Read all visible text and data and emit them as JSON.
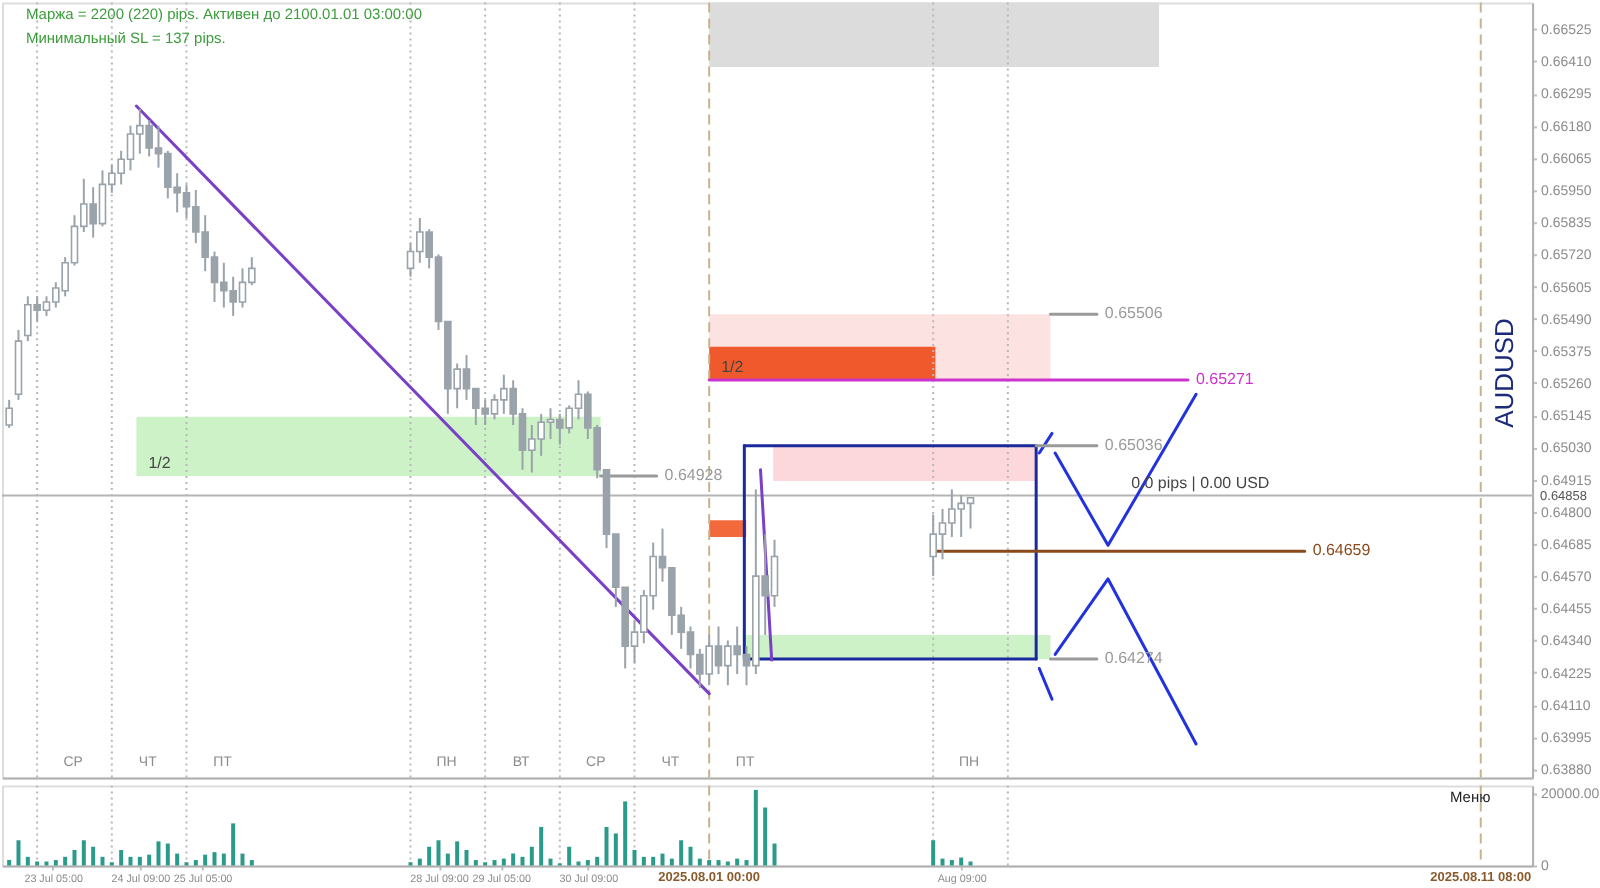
{
  "chart_data": [
    {
      "type": "candlestick",
      "ylabel": "AUDUSD",
      "color": "#9aa2aa",
      "x": [
        "2025-07-22T15:00",
        "2025-07-22T18:00",
        "2025-07-22T21:00",
        "2025-07-23T00:00",
        "2025-07-23T03:00",
        "2025-07-23T06:00",
        "2025-07-23T09:00",
        "2025-07-23T12:00",
        "2025-07-23T15:00",
        "2025-07-23T18:00",
        "2025-07-23T21:00",
        "2025-07-24T00:00",
        "2025-07-24T03:00",
        "2025-07-24T06:00",
        "2025-07-24T09:00",
        "2025-07-24T12:00",
        "2025-07-24T15:00",
        "2025-07-24T18:00",
        "2025-07-24T21:00",
        "2025-07-25T00:00",
        "2025-07-25T03:00",
        "2025-07-25T06:00",
        "2025-07-25T09:00",
        "2025-07-25T12:00",
        "2025-07-25T15:00",
        "2025-07-25T18:00",
        "2025-07-25T21:00",
        "2025-07-28T00:00",
        "2025-07-28T03:00",
        "2025-07-28T06:00",
        "2025-07-28T09:00",
        "2025-07-28T12:00",
        "2025-07-28T15:00",
        "2025-07-28T18:00",
        "2025-07-28T21:00",
        "2025-07-29T00:00",
        "2025-07-29T03:00",
        "2025-07-29T06:00",
        "2025-07-29T09:00",
        "2025-07-29T12:00",
        "2025-07-29T15:00",
        "2025-07-29T18:00",
        "2025-07-29T21:00",
        "2025-07-30T00:00",
        "2025-07-30T03:00",
        "2025-07-30T06:00",
        "2025-07-30T09:00",
        "2025-07-30T12:00",
        "2025-07-30T15:00",
        "2025-07-30T18:00",
        "2025-07-30T21:00",
        "2025-07-31T00:00",
        "2025-07-31T03:00",
        "2025-07-31T06:00",
        "2025-07-31T09:00",
        "2025-07-31T12:00",
        "2025-07-31T15:00",
        "2025-07-31T18:00",
        "2025-07-31T21:00",
        "2025-08-01T00:00",
        "2025-08-01T03:00",
        "2025-08-01T06:00",
        "2025-08-01T09:00",
        "2025-08-01T12:00",
        "2025-08-01T15:00",
        "2025-08-01T18:00",
        "2025-08-01T21:00",
        "2025-08-04T00:00",
        "2025-08-04T03:00",
        "2025-08-04T06:00",
        "2025-08-04T09:00",
        "2025-08-04T12:00"
      ],
      "ohlc": [
        [
          0.6511,
          0.652,
          0.651,
          0.6517
        ],
        [
          0.6522,
          0.6545,
          0.652,
          0.6541
        ],
        [
          0.6543,
          0.6557,
          0.6541,
          0.6554
        ],
        [
          0.6554,
          0.6557,
          0.6548,
          0.6552
        ],
        [
          0.6552,
          0.6557,
          0.655,
          0.6555
        ],
        [
          0.6555,
          0.6562,
          0.6553,
          0.656
        ],
        [
          0.6559,
          0.6571,
          0.6557,
          0.6569
        ],
        [
          0.6569,
          0.6586,
          0.6568,
          0.6582
        ],
        [
          0.6582,
          0.6599,
          0.658,
          0.659
        ],
        [
          0.659,
          0.6596,
          0.6578,
          0.6583
        ],
        [
          0.6583,
          0.6602,
          0.6582,
          0.6597
        ],
        [
          0.6597,
          0.6604,
          0.6594,
          0.6601
        ],
        [
          0.6601,
          0.6609,
          0.6597,
          0.6606
        ],
        [
          0.6606,
          0.6618,
          0.6602,
          0.6615
        ],
        [
          0.6615,
          0.6624,
          0.6608,
          0.6618
        ],
        [
          0.6618,
          0.662,
          0.6607,
          0.661
        ],
        [
          0.661,
          0.6618,
          0.6603,
          0.6608
        ],
        [
          0.6608,
          0.6609,
          0.6592,
          0.6596
        ],
        [
          0.6596,
          0.6601,
          0.6587,
          0.6594
        ],
        [
          0.6594,
          0.6597,
          0.6585,
          0.6589
        ],
        [
          0.6589,
          0.6595,
          0.6576,
          0.658
        ],
        [
          0.658,
          0.6586,
          0.6566,
          0.6571
        ],
        [
          0.6571,
          0.6573,
          0.6555,
          0.6562
        ],
        [
          0.6562,
          0.6569,
          0.6553,
          0.6559
        ],
        [
          0.6559,
          0.6564,
          0.655,
          0.6555
        ],
        [
          0.6555,
          0.6567,
          0.6553,
          0.6562
        ],
        [
          0.6562,
          0.6571,
          0.6561,
          0.6567
        ],
        [
          0.6567,
          0.6576,
          0.6564,
          0.6573
        ],
        [
          0.6573,
          0.6585,
          0.6569,
          0.658
        ],
        [
          0.658,
          0.6581,
          0.6567,
          0.6571
        ],
        [
          0.6571,
          0.6572,
          0.6545,
          0.6548
        ],
        [
          0.6548,
          0.6548,
          0.6515,
          0.6524
        ],
        [
          0.6524,
          0.6533,
          0.6517,
          0.6531
        ],
        [
          0.6531,
          0.6536,
          0.652,
          0.6524
        ],
        [
          0.6524,
          0.6524,
          0.6511,
          0.6517
        ],
        [
          0.6517,
          0.652,
          0.6511,
          0.6515
        ],
        [
          0.6515,
          0.6522,
          0.6513,
          0.652
        ],
        [
          0.652,
          0.6529,
          0.6515,
          0.6524
        ],
        [
          0.6524,
          0.6527,
          0.6511,
          0.6515
        ],
        [
          0.6515,
          0.6517,
          0.6495,
          0.6502
        ],
        [
          0.6502,
          0.6511,
          0.6494,
          0.6506
        ],
        [
          0.6506,
          0.6515,
          0.65,
          0.6512
        ],
        [
          0.6512,
          0.6517,
          0.6506,
          0.6513
        ],
        [
          0.6513,
          0.6515,
          0.6504,
          0.651
        ],
        [
          0.651,
          0.6518,
          0.6508,
          0.6517
        ],
        [
          0.6517,
          0.6527,
          0.6513,
          0.6522
        ],
        [
          0.6522,
          0.6523,
          0.6506,
          0.651
        ],
        [
          0.651,
          0.6511,
          0.6492,
          0.6495
        ],
        [
          0.6495,
          0.6495,
          0.6467,
          0.6472
        ],
        [
          0.6472,
          0.6472,
          0.6446,
          0.6453
        ],
        [
          0.6453,
          0.6453,
          0.6424,
          0.6432
        ],
        [
          0.6432,
          0.6441,
          0.6426,
          0.6437
        ],
        [
          0.6437,
          0.6452,
          0.6433,
          0.645
        ],
        [
          0.645,
          0.6469,
          0.6445,
          0.6464
        ],
        [
          0.6464,
          0.6474,
          0.6455,
          0.646
        ],
        [
          0.646,
          0.646,
          0.6436,
          0.6443
        ],
        [
          0.6443,
          0.6446,
          0.6431,
          0.6437
        ],
        [
          0.6437,
          0.6439,
          0.6424,
          0.6429
        ],
        [
          0.6429,
          0.6431,
          0.6417,
          0.6422
        ],
        [
          0.6422,
          0.6436,
          0.6418,
          0.6432
        ],
        [
          0.6432,
          0.6439,
          0.6422,
          0.6425
        ],
        [
          0.6425,
          0.6434,
          0.6418,
          0.6432
        ],
        [
          0.6432,
          0.6439,
          0.6422,
          0.6429
        ],
        [
          0.6429,
          0.6432,
          0.6418,
          0.6425
        ],
        [
          0.6425,
          0.6488,
          0.6422,
          0.6457
        ],
        [
          0.6457,
          0.6472,
          0.6436,
          0.645
        ],
        [
          0.645,
          0.647,
          0.6446,
          0.6464
        ],
        [
          0.6464,
          0.6479,
          0.6457,
          0.6472
        ],
        [
          0.6472,
          0.6481,
          0.6463,
          0.6476
        ],
        [
          0.6476,
          0.6488,
          0.6471,
          0.6481
        ],
        [
          0.6481,
          0.6486,
          0.6471,
          0.6483
        ],
        [
          0.6483,
          0.6485,
          0.6474,
          0.6485
        ]
      ],
      "series": [
        {
          "type": "line",
          "color": "#dcdcdc",
          "x": [
            "2025-08-01T00:00",
            "2025-08-07T00:36"
          ],
          "values": [
            null,
            null
          ],
          "lower": [
            0.6639,
            0.6639
          ],
          "upper": [
            0.6662,
            0.6662
          ]
        },
        {
          "type": "line",
          "color": "#fde2e2",
          "x": [
            "2025-08-01T00:00",
            "2025-08-05T13:42"
          ],
          "values": [
            null,
            null
          ],
          "lower": [
            0.65271,
            0.65271
          ],
          "upper": [
            0.65506,
            0.65506
          ]
        },
        {
          "type": "line",
          "color": "#f0592b",
          "x": [
            "2025-08-01T00:00",
            "2025-08-04T00:42"
          ],
          "values": [
            null,
            null
          ],
          "lower": [
            0.65271,
            0.65271
          ],
          "upper": [
            0.6539,
            0.6539
          ]
        },
        {
          "type": "line",
          "color": "#cdf2c8",
          "x": [
            "2025-07-24T07:54",
            "2025-07-30T13:06"
          ],
          "values": [
            null,
            null
          ],
          "lower": [
            0.64928,
            0.64928
          ],
          "upper": [
            0.6514,
            0.6514
          ]
        },
        {
          "type": "line",
          "color": "#fcd8dc",
          "x": [
            "2025-08-01T20:36",
            "2025-08-05T09:06"
          ],
          "values": [
            null,
            null
          ],
          "lower": [
            0.6491,
            0.6491
          ],
          "upper": [
            0.65036,
            0.65036
          ]
        },
        {
          "type": "line",
          "color": "#f26a3c",
          "x": [
            "2025-08-01T00:00",
            "2025-08-01T11:54"
          ],
          "values": [
            null,
            null
          ],
          "lower": [
            0.6471,
            0.6471
          ],
          "upper": [
            0.6477,
            0.6477
          ]
        },
        {
          "type": "line",
          "color": "#cdf2c8",
          "x": [
            "2025-08-01T11:18",
            "2025-08-05T13:42"
          ],
          "values": [
            null,
            null
          ],
          "lower": [
            0.64274,
            0.64274
          ],
          "upper": [
            0.6436,
            0.6436
          ]
        },
        {
          "type": "line",
          "color": "#1a2a9c",
          "x": [
            "2025-08-01T11:18",
            "2025-08-05T09:06",
            "2025-08-05T09:06"
          ],
          "values": [
            0.65036,
            0.65036,
            0.64274
          ]
        },
        {
          "type": "line",
          "color": "#1a2a9c",
          "x": [
            "2025-08-01T11:18",
            "2025-08-01T11:18",
            "2025-08-05T09:06"
          ],
          "values": [
            0.65036,
            0.64274,
            0.64274
          ]
        },
        {
          "type": "line",
          "color": "#2233dd",
          "x": [
            "2025-08-05T10:06",
            "2025-08-05T14:12"
          ],
          "values": [
            0.6501,
            0.6508
          ]
        },
        {
          "type": "line",
          "color": "#2233dd",
          "x": [
            "2025-08-05T15:12",
            "2025-08-06T08:12",
            "2025-08-07T12:30"
          ],
          "values": [
            0.6501,
            0.6468,
            0.6522
          ]
        },
        {
          "type": "line",
          "color": "#2233dd",
          "x": [
            "2025-08-05T10:06",
            "2025-08-05T14:12"
          ],
          "values": [
            0.6424,
            0.6413
          ]
        },
        {
          "type": "line",
          "color": "#2233dd",
          "x": [
            "2025-08-05T15:12",
            "2025-08-06T08:12",
            "2025-08-07T12:30"
          ],
          "values": [
            0.6429,
            0.6456,
            0.6397
          ]
        },
        {
          "type": "line",
          "color": "#7a40c8",
          "x": [
            "2025-07-24T07:54",
            "2025-08-01T00:00"
          ],
          "values": [
            0.6625,
            0.6415
          ]
        },
        {
          "type": "line",
          "color": "#7a40c8",
          "x": [
            "2025-08-01T16:30",
            "2025-08-01T20:06"
          ],
          "values": [
            0.6495,
            0.6427
          ]
        },
        {
          "type": "line",
          "name": "0.65271",
          "color": "#cc33cc",
          "x": [
            "2025-08-01T00:00",
            "2025-08-07T09:54"
          ],
          "values": [
            0.65271,
            0.65271
          ]
        },
        {
          "type": "line",
          "name": "0.64659",
          "color": "#8b4a1c",
          "x": [
            "2025-08-04T00:42",
            "2025-08-08T23:24"
          ],
          "values": [
            0.64659,
            0.64659
          ]
        },
        {
          "type": "line",
          "name": "0.65506",
          "color": "#9a9a9a",
          "x": [
            "2025-08-05T13:42",
            "2025-08-06T04:36"
          ],
          "values": [
            0.65506,
            0.65506
          ]
        },
        {
          "type": "line",
          "name": "0.65036",
          "color": "#9a9a9a",
          "x": [
            "2025-08-05T09:06",
            "2025-08-06T04:36"
          ],
          "values": [
            0.65036,
            0.65036
          ]
        },
        {
          "type": "line",
          "name": "0.64928",
          "color": "#9a9a9a",
          "x": [
            "2025-07-30T13:06",
            "2025-07-31T07:06"
          ],
          "values": [
            0.64928,
            0.64928
          ]
        },
        {
          "type": "line",
          "name": "0.64274",
          "color": "#9a9a9a",
          "x": [
            "2025-08-05T13:42",
            "2025-08-06T04:36"
          ],
          "values": [
            0.64274,
            0.64274
          ]
        }
      ],
      "ref_lines": [
        {
          "axis": "y",
          "value": 0.64858,
          "label": "0.64858",
          "color": "#b4b4b4",
          "line_style": "solid"
        },
        {
          "axis": "x",
          "value": "2025-07-23T00:00",
          "label": "СР",
          "color": "#b8b8b8",
          "line_style": "dotted"
        },
        {
          "axis": "x",
          "value": "2025-07-24T00:00",
          "label": "ЧТ",
          "color": "#b8b8b8",
          "line_style": "dotted"
        },
        {
          "axis": "x",
          "value": "2025-07-25T00:00",
          "label": "ПТ",
          "color": "#b8b8b8",
          "line_style": "dotted"
        },
        {
          "axis": "x",
          "value": "2025-07-28T00:00",
          "label": "ПН",
          "color": "#b8b8b8",
          "line_style": "dotted"
        },
        {
          "axis": "x",
          "value": "2025-07-29T00:00",
          "label": "ВТ",
          "color": "#b8b8b8",
          "line_style": "dotted"
        },
        {
          "axis": "x",
          "value": "2025-07-30T00:00",
          "label": "СР",
          "color": "#b8b8b8",
          "line_style": "dotted"
        },
        {
          "axis": "x",
          "value": "2025-07-31T00:00",
          "label": "ЧТ",
          "color": "#b8b8b8",
          "line_style": "dotted"
        },
        {
          "axis": "x",
          "value": "2025-08-01T00:00",
          "label": "ПТ",
          "color": "#c9b28f",
          "line_style": "dashed"
        },
        {
          "axis": "x",
          "value": "2025-08-04T00:00",
          "label": "ПН",
          "color": "#b8b8b8",
          "line_style": "dotted"
        },
        {
          "axis": "x",
          "value": "2025-08-05T00:00",
          "color": "#b8b8b8",
          "line_style": "dotted"
        },
        {
          "axis": "x",
          "value": "2025-08-11T08:00",
          "color": "#c9b28f",
          "line_style": "dashed"
        }
      ],
      "annotations": [
        "Маржа = 2200 (220) pips. Активен до 2100.01.01 03:00:00",
        "Минимальный SL = 137 pips.",
        {
          "text": "1/2",
          "x": "2025-07-24T07:54",
          "y": 0.64928
        },
        {
          "text": "1/2",
          "x": "2025-08-01T00:00",
          "y": 0.65271
        },
        {
          "text": "0.0 pips | 0.00 USD",
          "x": "2025-08-06T11:48",
          "y": 0.64858
        }
      ],
      "xlim": [
        "2025-07-22T12:42",
        "2025-08-12T00:30"
      ],
      "ylim": [
        0.6385,
        0.6662
      ],
      "tick_labels": "y",
      "yticks": [
        0.66525,
        {
          "value": 0.6641,
          "label": "0.66410"
        },
        0.66295,
        {
          "value": 0.6618,
          "label": "0.66180"
        },
        0.66065,
        {
          "value": 0.6595,
          "label": "0.65950"
        },
        0.65835,
        {
          "value": 0.6572,
          "label": "0.65720"
        },
        0.65605,
        {
          "value": 0.6549,
          "label": "0.65490"
        },
        0.65375,
        {
          "value": 0.6526,
          "label": "0.65260"
        },
        0.65145,
        {
          "value": 0.6503,
          "label": "0.65030"
        },
        0.64915,
        {
          "value": 0.648,
          "label": "0.64800"
        },
        0.64685,
        {
          "value": 0.6457,
          "label": "0.64570"
        },
        0.64455,
        {
          "value": 0.6434,
          "label": "0.64340"
        },
        0.64225,
        {
          "value": 0.6411,
          "label": "0.64110"
        },
        0.63995,
        {
          "value": 0.6388,
          "label": "0.63880"
        }
      ]
    },
    {
      "type": "bar",
      "color": "#2a9a8a",
      "x": [
        "2025-07-22T15:00",
        "2025-07-22T18:00",
        "2025-07-22T21:00",
        "2025-07-23T00:00",
        "2025-07-23T03:00",
        "2025-07-23T06:00",
        "2025-07-23T09:00",
        "2025-07-23T12:00",
        "2025-07-23T15:00",
        "2025-07-23T18:00",
        "2025-07-23T21:00",
        "2025-07-24T00:00",
        "2025-07-24T03:00",
        "2025-07-24T06:00",
        "2025-07-24T09:00",
        "2025-07-24T12:00",
        "2025-07-24T15:00",
        "2025-07-24T18:00",
        "2025-07-24T21:00",
        "2025-07-25T00:00",
        "2025-07-25T03:00",
        "2025-07-25T06:00",
        "2025-07-25T09:00",
        "2025-07-25T12:00",
        "2025-07-25T15:00",
        "2025-07-25T18:00",
        "2025-07-25T21:00",
        "2025-07-28T00:00",
        "2025-07-28T03:00",
        "2025-07-28T06:00",
        "2025-07-28T09:00",
        "2025-07-28T12:00",
        "2025-07-28T15:00",
        "2025-07-28T18:00",
        "2025-07-28T21:00",
        "2025-07-29T00:00",
        "2025-07-29T03:00",
        "2025-07-29T06:00",
        "2025-07-29T09:00",
        "2025-07-29T12:00",
        "2025-07-29T15:00",
        "2025-07-29T18:00",
        "2025-07-29T21:00",
        "2025-07-30T00:00",
        "2025-07-30T03:00",
        "2025-07-30T06:00",
        "2025-07-30T09:00",
        "2025-07-30T12:00",
        "2025-07-30T15:00",
        "2025-07-30T18:00",
        "2025-07-30T21:00",
        "2025-07-31T00:00",
        "2025-07-31T03:00",
        "2025-07-31T06:00",
        "2025-07-31T09:00",
        "2025-07-31T12:00",
        "2025-07-31T15:00",
        "2025-07-31T18:00",
        "2025-07-31T21:00",
        "2025-08-01T00:00",
        "2025-08-01T03:00",
        "2025-08-01T06:00",
        "2025-08-01T09:00",
        "2025-08-01T12:00",
        "2025-08-01T15:00",
        "2025-08-01T18:00",
        "2025-08-01T21:00",
        "2025-08-04T00:00",
        "2025-08-04T03:00",
        "2025-08-04T06:00",
        "2025-08-04T09:00",
        "2025-08-04T12:00"
      ],
      "values": [
        1500,
        7000,
        2400,
        1100,
        1100,
        1500,
        2400,
        4300,
        7000,
        5200,
        2400,
        900,
        4300,
        2400,
        2400,
        3000,
        6700,
        6100,
        3300,
        900,
        1500,
        3000,
        3700,
        3300,
        11700,
        3300,
        1500,
        900,
        1900,
        5200,
        7000,
        3300,
        6700,
        4300,
        1500,
        900,
        1500,
        1900,
        3300,
        2400,
        5200,
        10700,
        1900,
        600,
        5200,
        1100,
        1500,
        2400,
        10700,
        8900,
        17800,
        4300,
        2400,
        2400,
        3300,
        1900,
        7000,
        5200,
        1900,
        1500,
        1500,
        1100,
        1900,
        1500,
        21000,
        16100,
        6100,
        7000,
        1900,
        1500,
        2200,
        1100
      ],
      "ref_lines": [
        {
          "axis": "x",
          "value": "2025-07-23T00:00",
          "color": "#b8b8b8",
          "line_style": "dotted"
        },
        {
          "axis": "x",
          "value": "2025-07-24T00:00",
          "color": "#b8b8b8",
          "line_style": "dotted"
        },
        {
          "axis": "x",
          "value": "2025-07-25T00:00",
          "color": "#b8b8b8",
          "line_style": "dotted"
        },
        {
          "axis": "x",
          "value": "2025-07-28T00:00",
          "color": "#b8b8b8",
          "line_style": "dotted"
        },
        {
          "axis": "x",
          "value": "2025-07-29T00:00",
          "color": "#b8b8b8",
          "line_style": "dotted"
        },
        {
          "axis": "x",
          "value": "2025-07-30T00:00",
          "color": "#b8b8b8",
          "line_style": "dotted"
        },
        {
          "axis": "x",
          "value": "2025-07-31T00:00",
          "color": "#b8b8b8",
          "line_style": "dotted"
        },
        {
          "axis": "x",
          "value": "2025-08-01T00:00",
          "label": "2025.08.01 00:00",
          "color": "#c9b28f",
          "line_style": "dashed"
        },
        {
          "axis": "x",
          "value": "2025-08-04T00:00",
          "color": "#b8b8b8",
          "line_style": "dotted"
        },
        {
          "axis": "x",
          "value": "2025-08-05T00:00",
          "color": "#b8b8b8",
          "line_style": "dotted"
        },
        {
          "axis": "x",
          "value": "2025-08-11T08:00",
          "label": "2025.08.11 08:00",
          "color": "#c9b28f",
          "line_style": "dashed"
        }
      ],
      "annotations": [
        "Меню"
      ],
      "xlim": [
        "2025-07-22T12:42",
        "2025-08-12T00:30"
      ],
      "ylim": [
        0,
        22200
      ],
      "xticks": [
        {
          "value": "2025-07-23T05:00",
          "label": "23 Jul 05:00"
        },
        {
          "value": "2025-07-24T09:00",
          "label": "24 Jul 09:00"
        },
        {
          "value": "2025-07-25T05:00",
          "label": "25 Jul 05:00"
        },
        {
          "value": "2025-07-28T09:00",
          "label": "28 Jul 09:00"
        },
        {
          "value": "2025-07-29T05:00",
          "label": "29 Jul 05:00"
        },
        {
          "value": "2025-07-30T09:00",
          "label": "30 Jul 09:00"
        },
        {
          "value": "2025-08-04T09:00",
          "label": "Aug 09:00"
        }
      ],
      "yticks": [
        0,
        {
          "value": 20000,
          "label": "20000.00"
        }
      ]
    }
  ]
}
